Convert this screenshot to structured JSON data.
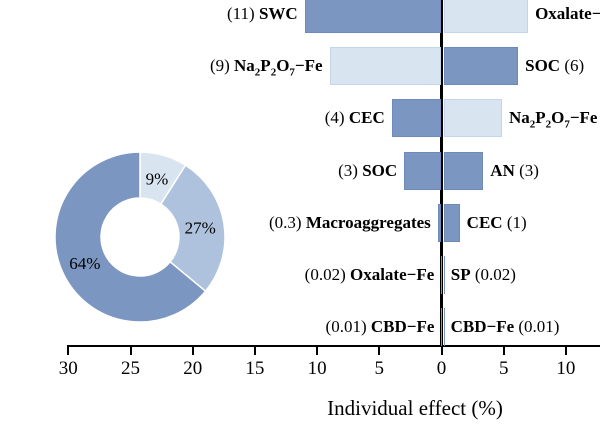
{
  "palette": {
    "dark": "#7b96c1",
    "donut_mid": "#aec2de",
    "light": "#d9e4f1",
    "axis": "#000000",
    "text": "#000000"
  },
  "chart_data": [
    {
      "type": "bar",
      "subtype": "diverging-horizontal-tornado",
      "title": "",
      "xlabel": "Individual effect (%)",
      "x_tick_labels": [
        "30",
        "25",
        "20",
        "15",
        "10",
        "5",
        "0",
        "5",
        "10"
      ],
      "x_tick_values": [
        -30,
        -25,
        -20,
        -15,
        -10,
        -5,
        0,
        5,
        10
      ],
      "xlim": [
        -32,
        13
      ],
      "grid": false,
      "zero_axis": true,
      "rows": [
        {
          "left": {
            "name": "SWC",
            "value_label": "(11)",
            "value": 11,
            "color": "dark"
          },
          "right": {
            "name": "Oxalate−Fe",
            "value_label": "",
            "value": 6.8,
            "color": "light"
          }
        },
        {
          "left": {
            "name": "Na_2P_2O_7−Fe",
            "value_label": "(9)",
            "value": 9,
            "color": "light"
          },
          "right": {
            "name": "SOC",
            "value_label": "(6)",
            "value": 6,
            "color": "dark"
          }
        },
        {
          "left": {
            "name": "CEC",
            "value_label": "(4)",
            "value": 4,
            "color": "dark"
          },
          "right": {
            "name": "Na_2P_2O_7−Fe",
            "value_label": "",
            "value": 4.7,
            "color": "light"
          }
        },
        {
          "left": {
            "name": "SOC",
            "value_label": "(3)",
            "value": 3,
            "color": "dark"
          },
          "right": {
            "name": "AN",
            "value_label": "(3)",
            "value": 3.2,
            "color": "dark"
          }
        },
        {
          "left": {
            "name": "Macroaggregates",
            "value_label": "(0.3)",
            "value": 0.3,
            "color": "dark"
          },
          "right": {
            "name": "CEC",
            "value_label": "(1)",
            "value": 1.3,
            "color": "dark"
          }
        },
        {
          "left": {
            "name": "Oxalate−Fe",
            "value_label": "(0.02)",
            "value": 0.02,
            "color": "dark"
          },
          "right": {
            "name": "SP",
            "value_label": "(0.02)",
            "value": 0.02,
            "color": "dark"
          }
        },
        {
          "left": {
            "name": "CBD−Fe",
            "value_label": "(0.01)",
            "value": 0.01,
            "color": "dark"
          },
          "right": {
            "name": "CBD−Fe",
            "value_label": "(0.01)",
            "value": 0.01,
            "color": "dark"
          }
        }
      ]
    },
    {
      "type": "pie",
      "donut": true,
      "legend_position": "none",
      "slices_clockwise_from_top": [
        {
          "label": "9%",
          "value": 9,
          "color": "light"
        },
        {
          "label": "27%",
          "value": 27,
          "color": "donut_mid"
        },
        {
          "label": "64%",
          "value": 64,
          "color": "dark"
        }
      ]
    }
  ]
}
